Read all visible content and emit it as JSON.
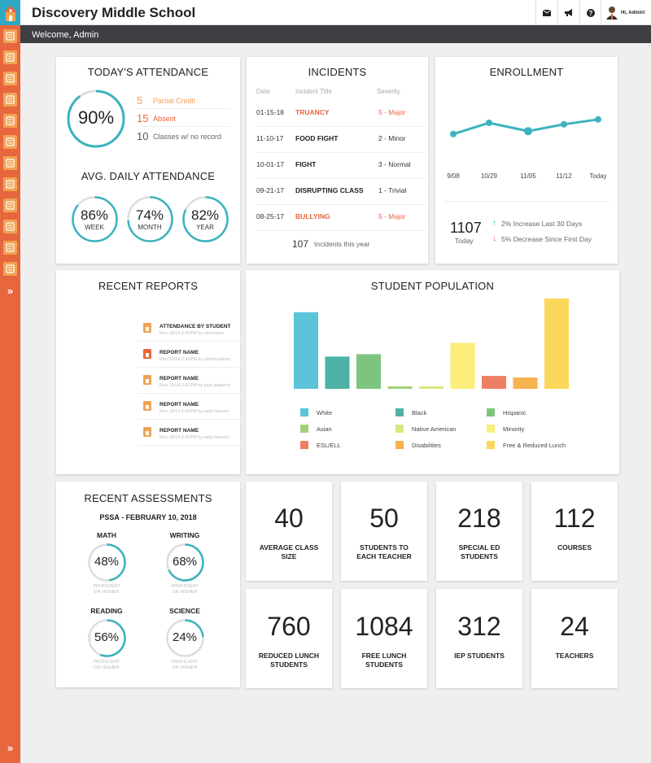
{
  "header": {
    "school_name": "Discovery Middle School",
    "user_label": "Hi, Admin!",
    "welcome_text": "Welcome, Admin"
  },
  "sidebar": {
    "items": [
      {
        "icon": "contacts-icon",
        "color": "#f0a356"
      },
      {
        "icon": "calendar-icon",
        "color": "#f0a356"
      },
      {
        "icon": "classroom-icon",
        "color": "#f0a356"
      },
      {
        "icon": "apple-icon",
        "color": "#f0a356"
      },
      {
        "icon": "checklist-icon",
        "color": "#f0a356"
      },
      {
        "icon": "document-icon",
        "color": "#f0a356"
      },
      {
        "icon": "report-card-icon",
        "color": "#f0a356"
      },
      {
        "icon": "alert-icon",
        "color": "#f0a356"
      },
      {
        "icon": "dollar-icon",
        "color": "#f0a356"
      },
      {
        "icon": "speech-icon",
        "color": "#f0a356"
      },
      {
        "icon": "grid-icon",
        "color": "#f0a356"
      },
      {
        "icon": "school-icon",
        "color": "#f0a356"
      }
    ],
    "expand_glyph": "»",
    "bottom_glyph": "»"
  },
  "attendance": {
    "title": "TODAY'S ATTENDANCE",
    "today_pct": "90%",
    "today_value": 0.9,
    "rows": [
      {
        "num": "5",
        "label": "Partial Credit",
        "color": "#f0a356"
      },
      {
        "num": "15",
        "label": "Absent",
        "color": "#e8663d"
      },
      {
        "num": "10",
        "label": "Classes w/ no record",
        "color": "#555"
      }
    ],
    "avg_title": "AVG. DAILY ATTENDANCE",
    "avg": [
      {
        "pct": "86%",
        "label": "WEEK",
        "value": 0.86
      },
      {
        "pct": "74%",
        "label": "MONTH",
        "value": 0.74
      },
      {
        "pct": "82%",
        "label": "YEAR",
        "value": 0.82
      }
    ]
  },
  "incidents": {
    "title": "INCIDENTS",
    "headers": {
      "date": "Date",
      "title": "Incident Title",
      "severity": "Severity"
    },
    "rows": [
      {
        "date": "01-15-18",
        "title": "TRUANCY",
        "severity": "5 - Major",
        "major": true
      },
      {
        "date": "11-10-17",
        "title": "FOOD FIGHT",
        "severity": "2 - Minor",
        "major": false
      },
      {
        "date": "10-01-17",
        "title": "FIGHT",
        "severity": "3 - Normal",
        "major": false
      },
      {
        "date": "09-21-17",
        "title": "DISRUPTING CLASS",
        "severity": "1 - Trivial",
        "major": false
      },
      {
        "date": "08-25-17",
        "title": "BULLYING",
        "severity": "5 - Major",
        "major": true
      }
    ],
    "total": "107",
    "total_label": "Incidents this year"
  },
  "enrollment": {
    "title": "ENROLLMENT",
    "x_labels": [
      "9/08",
      "10/29",
      "11/05",
      "11/12",
      "Today"
    ],
    "count": "1107",
    "count_label": "Today",
    "increase_text": "2% Increase Last 30 Days",
    "decrease_text": "5% Decrease Since First Day",
    "increase_glyph": "↑",
    "decrease_glyph": "↓"
  },
  "reports": {
    "title": "RECENT REPORTS",
    "items": [
      {
        "title": "ATTENDANCE BY STUDENT",
        "sub": "Run 10/14 2:42PM by username",
        "color": "#f0a356"
      },
      {
        "title": "REPORT NAME",
        "sub": "Run 10/14 2:42PM by district.admin",
        "color": "#e8663d"
      },
      {
        "title": "REPORT NAME",
        "sub": "Run 10/14 2:42PM by jose.jalapeno",
        "color": "#f0a356"
      },
      {
        "title": "REPORT NAME",
        "sub": "Run 10/14 2:42PM by sally.hanson",
        "color": "#f0a356"
      },
      {
        "title": "REPORT NAME",
        "sub": "Run 10/14 2:42PM by sally.hanson",
        "color": "#f0a356"
      }
    ]
  },
  "population": {
    "title": "STUDENT POPULATION",
    "legend": [
      {
        "label": "White",
        "color": "#5bc4d9"
      },
      {
        "label": "Black",
        "color": "#4db3a6"
      },
      {
        "label": "Hispanic",
        "color": "#7dc57e"
      },
      {
        "label": "Asian",
        "color": "#a3d07a"
      },
      {
        "label": "Native American",
        "color": "#d6e87a"
      },
      {
        "label": "Minority",
        "color": "#fbee7a"
      },
      {
        "label": "ESL/ELL",
        "color": "#ef7f62"
      },
      {
        "label": "Disabilities",
        "color": "#f7b34d"
      },
      {
        "label": "Free & Reduced Lunch",
        "color": "#fbd75b"
      }
    ]
  },
  "chart_data": {
    "type": "bar",
    "categories": [
      "White",
      "Black",
      "Hispanic",
      "Asian",
      "Native American",
      "Minority",
      "ESL/ELL",
      "Disabilities",
      "Free & Reduced Lunch"
    ],
    "values": [
      95,
      40,
      43,
      3,
      3,
      57,
      16,
      14,
      112
    ],
    "colors": [
      "#5bc4d9",
      "#4db3a6",
      "#7dc57e",
      "#a3d07a",
      "#d6e87a",
      "#fbee7a",
      "#ef7f62",
      "#f7b34d",
      "#fbd75b"
    ],
    "title": "STUDENT POPULATION",
    "ylim": [
      0,
      115
    ],
    "legend_position": "bottom"
  },
  "enrollment_chart": {
    "type": "line",
    "x": [
      "9/08",
      "10/29",
      "11/05",
      "11/12",
      "Today"
    ],
    "values": [
      42,
      65,
      48,
      62,
      72
    ],
    "color": "#3bb3bf",
    "ylim": [
      0,
      100
    ]
  },
  "assessments": {
    "title": "RECENT ASSESSMENTS",
    "subtitle": "PSSA - FEBRUARY 10, 2018",
    "sub_label_1": "PROFICIENT",
    "sub_label_2": "OR HIGHER",
    "items": [
      {
        "label": "MATH",
        "pct": "48%",
        "value": 0.48
      },
      {
        "label": "WRITING",
        "pct": "68%",
        "value": 0.68
      },
      {
        "label": "READING",
        "pct": "56%",
        "value": 0.56
      },
      {
        "label": "SCIENCE",
        "pct": "24%",
        "value": 0.24
      }
    ]
  },
  "stats": [
    {
      "value": "40",
      "label": "AVERAGE CLASS SIZE"
    },
    {
      "value": "50",
      "label": "STUDENTS TO EACH TEACHER"
    },
    {
      "value": "218",
      "label": "SPECIAL ED STUDENTS"
    },
    {
      "value": "112",
      "label": "COURSES"
    },
    {
      "value": "760",
      "label": "REDUCED LUNCH STUDENTS"
    },
    {
      "value": "1084",
      "label": "FREE LUNCH STUDENTS"
    },
    {
      "value": "312",
      "label": "IEP STUDENTS"
    },
    {
      "value": "24",
      "label": "TEACHERS"
    }
  ],
  "colors": {
    "accent": "#e8663d",
    "teal": "#2ea8c4",
    "ring": "#3bb3bf",
    "ring_bg": "#dddddd",
    "dark_bar": "#3d3f42"
  }
}
